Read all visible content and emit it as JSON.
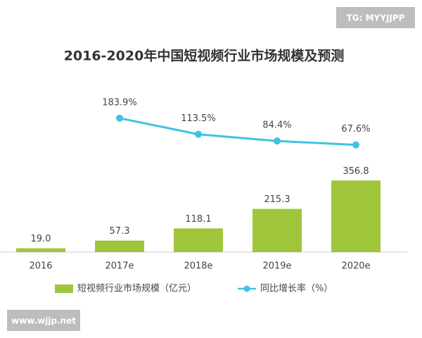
{
  "watermarks": [
    "TG: MYYJJPP",
    "www.wjjp.net"
  ],
  "chart_data": {
    "type": "bar",
    "title": "2016-2020年中国短视频行业市场规模及预测",
    "categories": [
      "2016",
      "2017e",
      "2018e",
      "2019e",
      "2020e"
    ],
    "ylim": [
      0,
      800
    ],
    "y2lim": [
      -400,
      300
    ],
    "legend": "bottom",
    "series": [
      {
        "name": "短视频行业市场规模（亿元）",
        "type": "bar",
        "color": "#9fc63b",
        "values": [
          19.0,
          57.3,
          118.1,
          215.3,
          356.8
        ],
        "value_labels": [
          "19.0",
          "57.3",
          "118.1",
          "215.3",
          "356.8"
        ]
      },
      {
        "name": "同比增长率（%）",
        "type": "line",
        "axis": "y2",
        "color": "#3fc3e2",
        "values": [
          null,
          183.9,
          113.5,
          84.4,
          67.6
        ],
        "value_labels": [
          null,
          "183.9%",
          "113.5%",
          "84.4%",
          "67.6%"
        ]
      }
    ]
  }
}
